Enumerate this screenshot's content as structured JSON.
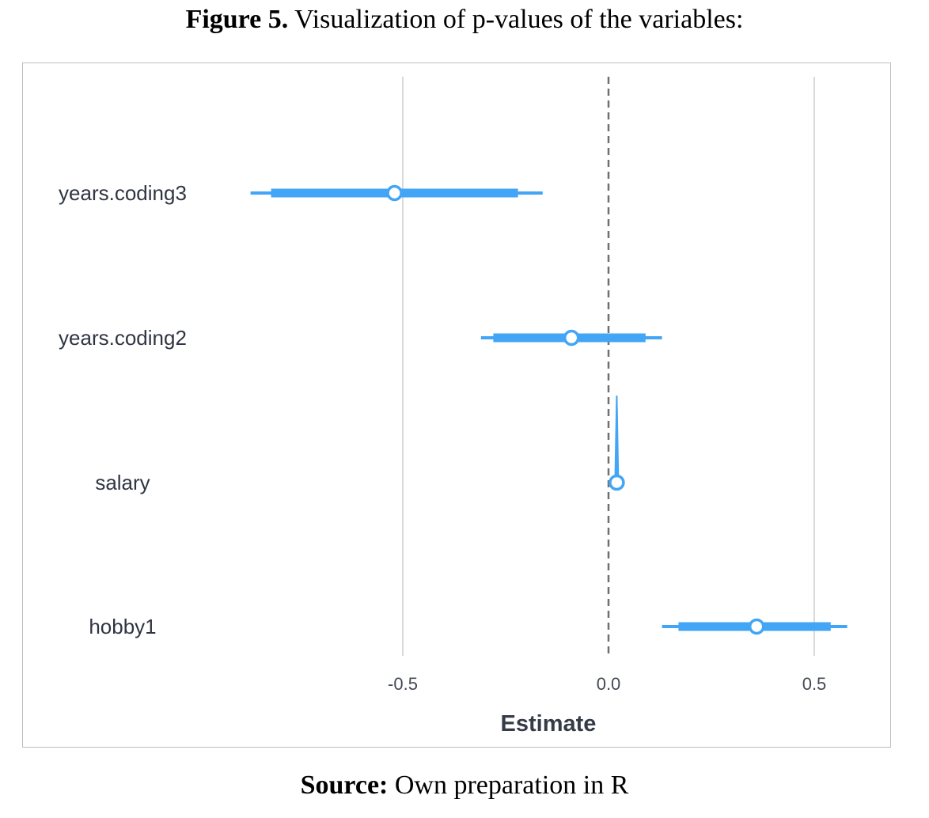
{
  "figure_caption": {
    "label": "Figure 5.",
    "text": " Visualization of p-values of the variables:"
  },
  "source_caption": {
    "label": "Source:",
    "text": " Own preparation in R"
  },
  "colors": {
    "series": "#42a5f5",
    "grid": "#d9d9d9",
    "zero_line": "#707070"
  },
  "chart_data": {
    "type": "scatter",
    "subtype": "coefficient-interval",
    "xlabel": "Estimate",
    "ylabel": "",
    "xlim": [
      -1.0,
      0.62
    ],
    "xticks": [
      -0.5,
      0.0,
      0.5
    ],
    "xtick_labels": [
      "-0.5",
      "0.0",
      "0.5"
    ],
    "grid": "vertical",
    "zero_reference_line": "dashed",
    "categories": [
      "years.coding3",
      "years.coding2",
      "salary",
      "hobby1"
    ],
    "estimate": [
      -0.52,
      -0.09,
      0.02,
      0.36
    ],
    "inner_interval": [
      [
        -0.82,
        -0.22
      ],
      [
        -0.28,
        0.09
      ],
      [
        0.02,
        0.02
      ],
      [
        0.17,
        0.54
      ]
    ],
    "outer_interval": [
      [
        -0.87,
        -0.16
      ],
      [
        -0.31,
        0.13
      ],
      [
        0.02,
        0.02
      ],
      [
        0.13,
        0.58
      ]
    ]
  }
}
